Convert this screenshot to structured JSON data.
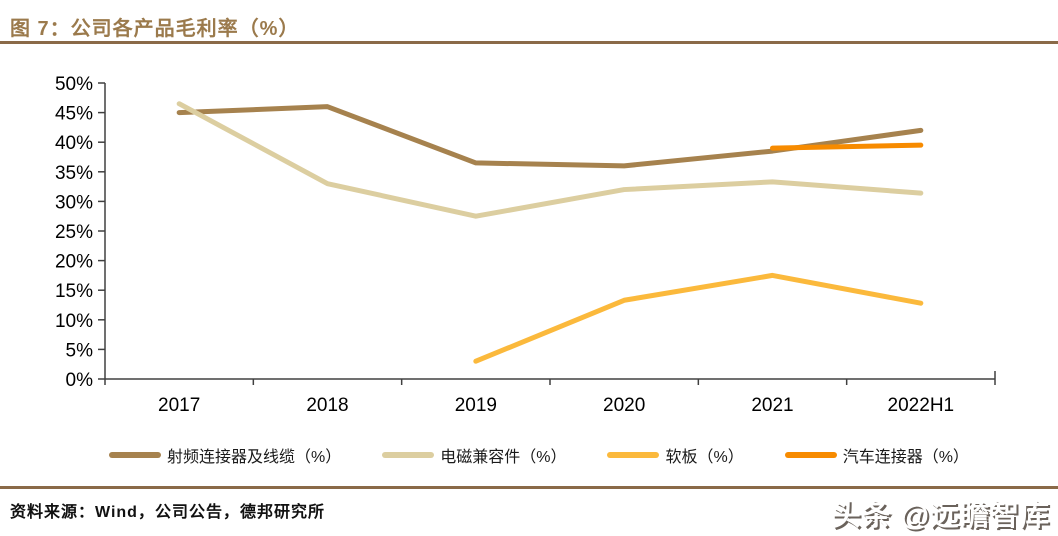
{
  "header": {
    "title": "图 7：公司各产品毛利率（%）"
  },
  "chart_data": {
    "type": "line",
    "title": "公司各产品毛利率（%）",
    "categories": [
      "2017",
      "2018",
      "2019",
      "2020",
      "2021",
      "2022H1"
    ],
    "series": [
      {
        "name": "射频连接器及线缆（%）",
        "color": "#A6824E",
        "values": [
          45.0,
          46.0,
          36.5,
          36.0,
          38.5,
          42.0
        ]
      },
      {
        "name": "电磁兼容件（%）",
        "color": "#DCCEA0",
        "values": [
          46.5,
          33.0,
          27.5,
          32.0,
          33.3,
          31.4
        ]
      },
      {
        "name": "软板（%）",
        "color": "#FBB93C",
        "values": [
          null,
          null,
          3.0,
          13.3,
          17.5,
          12.8
        ]
      },
      {
        "name": "汽车连接器（%）",
        "color": "#F78B00",
        "values": [
          null,
          null,
          null,
          null,
          39.0,
          39.5
        ]
      }
    ],
    "xlabel": "",
    "ylabel": "",
    "ylim": [
      0,
      50
    ],
    "ytick_step": 5,
    "ytick_labels": [
      "0%",
      "5%",
      "10%",
      "15%",
      "20%",
      "25%",
      "30%",
      "35%",
      "40%",
      "45%",
      "50%"
    ],
    "grid": false,
    "legend_position": "bottom",
    "axis_color": "#404040",
    "tick_label_color": "#000000",
    "line_width": 5
  },
  "footer": {
    "source": "资料来源：Wind，公司公告，德邦研究所"
  },
  "watermark": {
    "text": "头条 @远瞻智库"
  },
  "colors": {
    "title_brown": "#9B7A4C",
    "rule_brown": "#8A6A48",
    "background": "#FFFFFF"
  }
}
